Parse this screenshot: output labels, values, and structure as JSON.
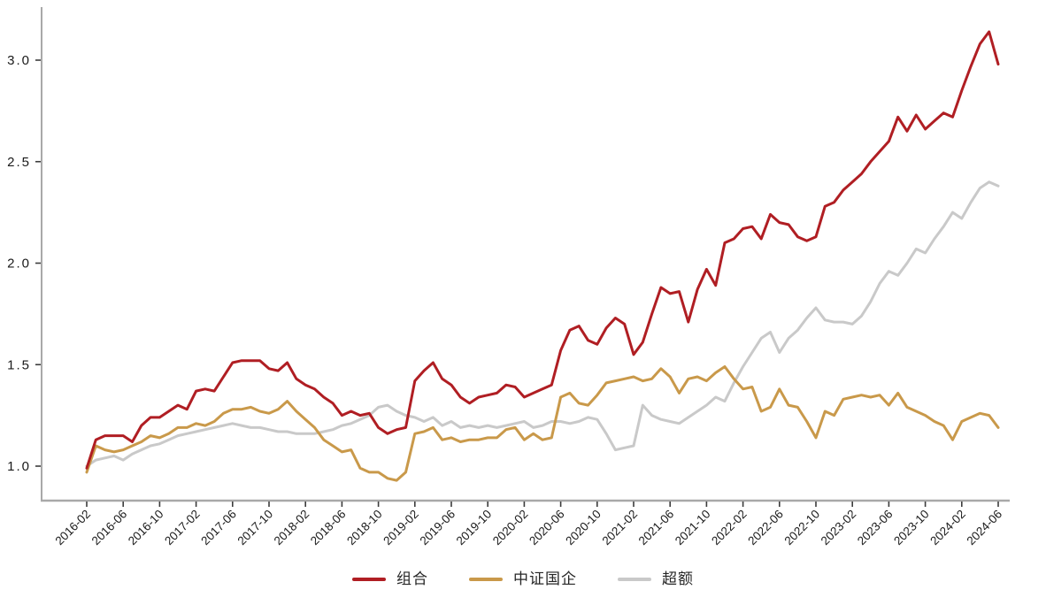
{
  "chart_data": {
    "type": "line",
    "title": "",
    "xlabel": "",
    "ylabel": "",
    "grid": false,
    "legend_position": "bottom-center",
    "axis_color": "#a9a9a9",
    "tick_color": "#3c3c3c",
    "tick_label_color": "#1a1a1a",
    "ylim": [
      0.85,
      3.25
    ],
    "y_ticks": [
      {
        "value": 1.0,
        "label": "1.0"
      },
      {
        "value": 1.5,
        "label": "1.5"
      },
      {
        "value": 2.0,
        "label": "2.0"
      },
      {
        "value": 2.5,
        "label": "2.5"
      },
      {
        "value": 3.0,
        "label": "3.0"
      }
    ],
    "x_tick_labels": [
      "2016-02",
      "2016-06",
      "2016-10",
      "2017-02",
      "2017-06",
      "2017-10",
      "2018-02",
      "2018-06",
      "2018-10",
      "2019-02",
      "2019-06",
      "2019-10",
      "2020-02",
      "2020-06",
      "2020-10",
      "2021-02",
      "2021-06",
      "2021-10",
      "2022-02",
      "2022-06",
      "2022-10",
      "2023-02",
      "2023-06",
      "2023-10",
      "2024-02",
      "2024-06"
    ],
    "x": [
      "2016-02",
      "2016-03",
      "2016-04",
      "2016-05",
      "2016-06",
      "2016-07",
      "2016-08",
      "2016-09",
      "2016-10",
      "2016-11",
      "2016-12",
      "2017-01",
      "2017-02",
      "2017-03",
      "2017-04",
      "2017-05",
      "2017-06",
      "2017-07",
      "2017-08",
      "2017-09",
      "2017-10",
      "2017-11",
      "2017-12",
      "2018-01",
      "2018-02",
      "2018-03",
      "2018-04",
      "2018-05",
      "2018-06",
      "2018-07",
      "2018-08",
      "2018-09",
      "2018-10",
      "2018-11",
      "2018-12",
      "2019-01",
      "2019-02",
      "2019-03",
      "2019-04",
      "2019-05",
      "2019-06",
      "2019-07",
      "2019-08",
      "2019-09",
      "2019-10",
      "2019-11",
      "2019-12",
      "2020-01",
      "2020-02",
      "2020-03",
      "2020-04",
      "2020-05",
      "2020-06",
      "2020-07",
      "2020-08",
      "2020-09",
      "2020-10",
      "2020-11",
      "2020-12",
      "2021-01",
      "2021-02",
      "2021-03",
      "2021-04",
      "2021-05",
      "2021-06",
      "2021-07",
      "2021-08",
      "2021-09",
      "2021-10",
      "2021-11",
      "2021-12",
      "2022-01",
      "2022-02",
      "2022-03",
      "2022-04",
      "2022-05",
      "2022-06",
      "2022-07",
      "2022-08",
      "2022-09",
      "2022-10",
      "2022-11",
      "2022-12",
      "2023-01",
      "2023-02",
      "2023-03",
      "2023-04",
      "2023-05",
      "2023-06",
      "2023-07",
      "2023-08",
      "2023-09",
      "2023-10",
      "2023-11",
      "2023-12",
      "2024-01",
      "2024-02",
      "2024-03",
      "2024-04",
      "2024-05",
      "2024-06"
    ],
    "series": [
      {
        "name": "组合",
        "color": "#b01e23",
        "values": [
          0.99,
          1.13,
          1.15,
          1.15,
          1.15,
          1.12,
          1.2,
          1.24,
          1.24,
          1.27,
          1.3,
          1.28,
          1.37,
          1.38,
          1.37,
          1.44,
          1.51,
          1.52,
          1.52,
          1.52,
          1.48,
          1.47,
          1.51,
          1.43,
          1.4,
          1.38,
          1.34,
          1.31,
          1.25,
          1.27,
          1.25,
          1.26,
          1.19,
          1.16,
          1.18,
          1.19,
          1.42,
          1.47,
          1.51,
          1.43,
          1.4,
          1.34,
          1.31,
          1.34,
          1.35,
          1.36,
          1.4,
          1.39,
          1.34,
          1.36,
          1.38,
          1.4,
          1.57,
          1.67,
          1.69,
          1.62,
          1.6,
          1.68,
          1.73,
          1.7,
          1.55,
          1.61,
          1.75,
          1.88,
          1.85,
          1.86,
          1.71,
          1.87,
          1.97,
          1.89,
          2.1,
          2.12,
          2.17,
          2.18,
          2.12,
          2.24,
          2.2,
          2.19,
          2.13,
          2.11,
          2.13,
          2.28,
          2.3,
          2.36,
          2.4,
          2.44,
          2.5,
          2.55,
          2.6,
          2.72,
          2.65,
          2.73,
          2.66,
          2.7,
          2.74,
          2.72,
          2.85,
          2.97,
          3.08,
          3.14,
          2.98
        ]
      },
      {
        "name": "中证国企",
        "color": "#c9994a",
        "values": [
          0.97,
          1.1,
          1.08,
          1.07,
          1.08,
          1.1,
          1.12,
          1.15,
          1.14,
          1.16,
          1.19,
          1.19,
          1.21,
          1.2,
          1.22,
          1.26,
          1.28,
          1.28,
          1.29,
          1.27,
          1.26,
          1.28,
          1.32,
          1.27,
          1.23,
          1.19,
          1.13,
          1.1,
          1.07,
          1.08,
          0.99,
          0.97,
          0.97,
          0.94,
          0.93,
          0.97,
          1.16,
          1.17,
          1.19,
          1.13,
          1.14,
          1.12,
          1.13,
          1.13,
          1.14,
          1.14,
          1.18,
          1.19,
          1.13,
          1.16,
          1.13,
          1.14,
          1.34,
          1.36,
          1.31,
          1.3,
          1.35,
          1.41,
          1.42,
          1.43,
          1.44,
          1.42,
          1.43,
          1.48,
          1.44,
          1.36,
          1.43,
          1.44,
          1.42,
          1.46,
          1.49,
          1.43,
          1.38,
          1.39,
          1.27,
          1.29,
          1.38,
          1.3,
          1.29,
          1.22,
          1.14,
          1.27,
          1.25,
          1.33,
          1.34,
          1.35,
          1.34,
          1.35,
          1.3,
          1.36,
          1.29,
          1.27,
          1.25,
          1.22,
          1.2,
          1.13,
          1.22,
          1.24,
          1.26,
          1.25,
          1.19
        ]
      },
      {
        "name": "超额",
        "color": "#c9c9c9",
        "values": [
          1.0,
          1.03,
          1.04,
          1.05,
          1.03,
          1.06,
          1.08,
          1.1,
          1.11,
          1.13,
          1.15,
          1.16,
          1.17,
          1.18,
          1.19,
          1.2,
          1.21,
          1.2,
          1.19,
          1.19,
          1.18,
          1.17,
          1.17,
          1.16,
          1.16,
          1.16,
          1.17,
          1.18,
          1.2,
          1.21,
          1.23,
          1.25,
          1.29,
          1.3,
          1.27,
          1.25,
          1.24,
          1.22,
          1.24,
          1.2,
          1.22,
          1.19,
          1.2,
          1.19,
          1.2,
          1.19,
          1.2,
          1.21,
          1.22,
          1.19,
          1.2,
          1.22,
          1.22,
          1.21,
          1.22,
          1.24,
          1.23,
          1.16,
          1.08,
          1.09,
          1.1,
          1.3,
          1.25,
          1.23,
          1.22,
          1.21,
          1.24,
          1.27,
          1.3,
          1.34,
          1.32,
          1.41,
          1.49,
          1.56,
          1.63,
          1.66,
          1.56,
          1.63,
          1.67,
          1.73,
          1.78,
          1.72,
          1.71,
          1.71,
          1.7,
          1.74,
          1.81,
          1.9,
          1.96,
          1.94,
          2.0,
          2.07,
          2.05,
          2.12,
          2.18,
          2.25,
          2.22,
          2.3,
          2.37,
          2.4,
          2.38
        ]
      }
    ],
    "legend": {
      "items": [
        {
          "label": "组合"
        },
        {
          "label": "中证国企"
        },
        {
          "label": "超额"
        }
      ]
    }
  }
}
